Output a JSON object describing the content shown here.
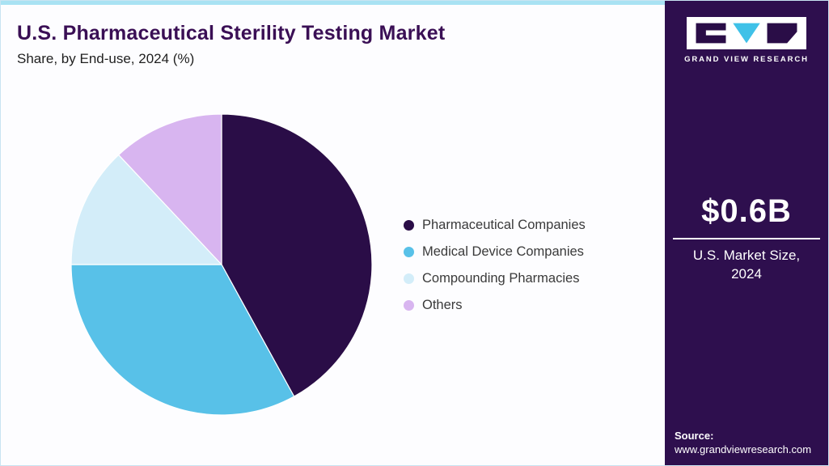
{
  "header": {
    "title": "U.S. Pharmaceutical Sterility Testing Market",
    "subtitle": "Share, by End-use, 2024 (%)"
  },
  "chart_data": {
    "type": "pie",
    "title": "U.S. Pharmaceutical Sterility Testing Market Share, by End-use, 2024 (%)",
    "unit": "%",
    "start_angle_deg": 0,
    "direction": "clockwise",
    "legend_position": "right",
    "slices": [
      {
        "label": "Pharmaceutical Companies",
        "value": 42,
        "color": "#2a0d47"
      },
      {
        "label": "Medical Device Companies",
        "value": 33,
        "color": "#58c1e8"
      },
      {
        "label": "Compounding Pharmacies",
        "value": 13,
        "color": "#d3edf9"
      },
      {
        "label": "Others",
        "value": 12,
        "color": "#d8b5f0"
      }
    ]
  },
  "sidebar": {
    "brand": "GRAND VIEW RESEARCH",
    "market_size_value": "$0.6B",
    "market_size_label_lines": [
      "U.S. Market Size,",
      "2024"
    ],
    "source_label": "Source:",
    "source_url": "www.grandviewresearch.com"
  },
  "colors": {
    "top_bar": "#a9e2f3",
    "sidebar_bg": "#2e0f4e",
    "title": "#3a0f55",
    "logo_dark": "#2a0d47",
    "logo_cyan": "#3fc1e8"
  }
}
